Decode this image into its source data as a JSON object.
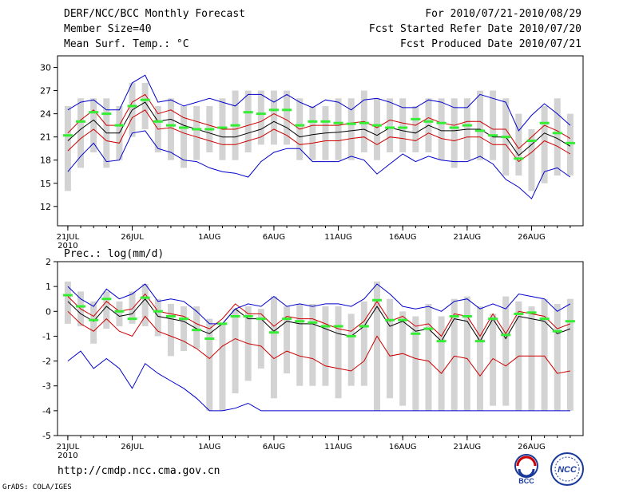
{
  "header": {
    "title": "DERF/NCC/BCC Monthly Forecast",
    "member_size": "Member Size=40",
    "variable": "Mean Surf. Temp.: °C",
    "for_period": "For 2010/07/21-2010/08/29",
    "fcst_started": "Fcst Started Refer Date 2010/07/20",
    "fcst_produced": "Fcst Produced Date 2010/07/21"
  },
  "footer": {
    "url": "http://cmdp.ncc.cma.gov.cn",
    "grads_credit": "GrADS: COLA/IGES",
    "logo_bcc": "BCC",
    "logo_ncc": "NCC"
  },
  "colors": {
    "box": "#d3d3d3",
    "green": "#33ee33",
    "blue": "#0000cc",
    "red": "#cc0000",
    "black": "#000000",
    "frame": "#000000"
  },
  "chart_data": [
    {
      "type": "box",
      "title": "Mean Surf. Temp.: °C",
      "xlabel": "",
      "ylabel": "",
      "x": [
        1,
        2,
        3,
        4,
        5,
        6,
        7,
        8,
        9,
        10,
        11,
        12,
        13,
        14,
        15,
        16,
        17,
        18,
        19,
        20,
        21,
        22,
        23,
        24,
        25,
        26,
        27,
        28,
        29,
        30,
        31,
        32,
        33,
        34,
        35,
        36,
        37,
        38,
        39,
        40
      ],
      "x_ticks": [
        {
          "x": 1,
          "label": "21JUL",
          "sublabel": "2010"
        },
        {
          "x": 6,
          "label": "26JUL"
        },
        {
          "x": 12,
          "label": "1AUG"
        },
        {
          "x": 17,
          "label": "6AUG"
        },
        {
          "x": 22,
          "label": "11AUG"
        },
        {
          "x": 27,
          "label": "16AUG"
        },
        {
          "x": 32,
          "label": "21AUG"
        },
        {
          "x": 37,
          "label": "26AUG"
        }
      ],
      "xlim": [
        0.2,
        41
      ],
      "ylim": [
        9.5,
        31.5
      ],
      "yticks": [
        12,
        15,
        18,
        21,
        24,
        27,
        30
      ],
      "box_low": [
        14,
        17,
        19,
        17,
        18,
        21,
        22,
        19,
        18,
        17,
        18,
        19,
        18,
        18,
        19,
        20,
        20,
        20,
        18,
        18,
        18,
        18,
        18,
        19,
        18,
        19,
        19,
        19,
        19,
        18,
        17,
        18,
        18,
        18,
        16,
        16,
        14,
        15,
        16,
        16
      ],
      "box_high": [
        25,
        26,
        26,
        26,
        25,
        28,
        28,
        25,
        26,
        25,
        25,
        25,
        26,
        27,
        27,
        27,
        27,
        27,
        26,
        25,
        25,
        26,
        26,
        27,
        26,
        26,
        26,
        25,
        26,
        26,
        26,
        26,
        27,
        27,
        26,
        24,
        22,
        25,
        26,
        24
      ],
      "green": [
        21.2,
        23,
        24.2,
        24,
        22.5,
        25,
        25.8,
        23,
        22.5,
        22.2,
        22,
        22,
        22.2,
        22.5,
        24.2,
        24,
        24.5,
        24.5,
        22.5,
        23,
        23,
        22.8,
        22.7,
        22.8,
        22.5,
        22.2,
        22.2,
        23.3,
        23,
        22.8,
        22.2,
        22.5,
        21.8,
        21.2,
        21,
        18.2,
        20.5,
        22.8,
        21.5,
        20.2
      ],
      "series": [
        {
          "name": "ensemble mean",
          "color": "#000000",
          "values": [
            20.5,
            22.0,
            23.2,
            21.5,
            21.5,
            24.5,
            25.5,
            23.0,
            23.3,
            22.5,
            22.0,
            21.5,
            21.0,
            21.0,
            21.5,
            22.0,
            23.0,
            22.2,
            21.0,
            21.3,
            21.5,
            21.6,
            21.8,
            22.0,
            21.2,
            22.2,
            21.8,
            21.5,
            22.5,
            21.8,
            21.8,
            22.0,
            22.0,
            21.0,
            21.0,
            18.6,
            20.0,
            21.5,
            20.8,
            19.8
          ]
        },
        {
          "name": "upper red",
          "color": "#cc0000",
          "values": [
            21.5,
            23.2,
            24.5,
            22.5,
            22.5,
            25.5,
            26.5,
            24.0,
            24.5,
            23.5,
            23.0,
            22.5,
            22.0,
            22.0,
            22.5,
            23.0,
            24.0,
            23.2,
            22.0,
            22.5,
            22.5,
            22.5,
            22.8,
            23.0,
            22.2,
            23.2,
            22.8,
            22.5,
            23.5,
            22.8,
            22.5,
            23.0,
            23.0,
            22.0,
            22.0,
            19.5,
            21.0,
            22.5,
            21.8,
            20.8
          ]
        },
        {
          "name": "lower red",
          "color": "#cc0000",
          "values": [
            19.2,
            20.8,
            22.0,
            20.5,
            20.2,
            23.5,
            24.5,
            22.0,
            22.2,
            21.5,
            21.0,
            20.5,
            20.0,
            20.0,
            20.5,
            21.0,
            22.0,
            21.2,
            20.0,
            20.2,
            20.5,
            20.5,
            20.8,
            21.0,
            20.0,
            21.0,
            20.8,
            20.5,
            21.5,
            20.8,
            20.5,
            21.0,
            21.0,
            20.0,
            20.0,
            17.8,
            19.0,
            20.5,
            19.8,
            18.8
          ]
        },
        {
          "name": "max",
          "color": "#0000cc",
          "values": [
            24.5,
            25.5,
            25.8,
            24.5,
            24.5,
            28.0,
            29.0,
            25.5,
            25.8,
            25.0,
            25.5,
            26.0,
            25.5,
            25.0,
            26.5,
            26.5,
            25.5,
            26.5,
            25.5,
            24.8,
            25.8,
            25.5,
            24.5,
            25.8,
            26.0,
            25.5,
            24.8,
            24.8,
            25.8,
            25.5,
            24.8,
            24.8,
            26.5,
            26.0,
            25.5,
            21.8,
            23.8,
            25.3,
            24.0,
            22.5
          ]
        },
        {
          "name": "min",
          "color": "#0000cc",
          "values": [
            16.5,
            18.5,
            20.2,
            17.8,
            18.0,
            21.5,
            21.8,
            19.5,
            19.0,
            18.0,
            17.8,
            17.0,
            16.5,
            16.3,
            15.8,
            17.8,
            19.0,
            19.5,
            19.5,
            17.8,
            17.8,
            17.8,
            18.5,
            18.0,
            16.2,
            17.5,
            18.8,
            17.8,
            18.5,
            18.0,
            17.8,
            17.8,
            18.5,
            17.5,
            15.5,
            14.5,
            13.0,
            16.5,
            17.0,
            15.8
          ]
        }
      ]
    },
    {
      "type": "box",
      "title": "Prec.: log(mm/d)",
      "xlabel": "",
      "ylabel": "",
      "x": [
        1,
        2,
        3,
        4,
        5,
        6,
        7,
        8,
        9,
        10,
        11,
        12,
        13,
        14,
        15,
        16,
        17,
        18,
        19,
        20,
        21,
        22,
        23,
        24,
        25,
        26,
        27,
        28,
        29,
        30,
        31,
        32,
        33,
        34,
        35,
        36,
        37,
        38,
        39,
        40
      ],
      "x_ticks": [
        {
          "x": 1,
          "label": "21JUL",
          "sublabel": "2010"
        },
        {
          "x": 6,
          "label": "26JUL"
        },
        {
          "x": 12,
          "label": "1AUG"
        },
        {
          "x": 17,
          "label": "6AUG"
        },
        {
          "x": 22,
          "label": "11AUG"
        },
        {
          "x": 27,
          "label": "16AUG"
        },
        {
          "x": 32,
          "label": "21AUG"
        },
        {
          "x": 37,
          "label": "26AUG"
        }
      ],
      "xlim": [
        0.2,
        41
      ],
      "ylim": [
        -5,
        2
      ],
      "yticks": [
        -5,
        -4,
        -3,
        -2,
        -1,
        0,
        1,
        2
      ],
      "box_low": [
        -0.5,
        -0.6,
        -1.3,
        -0.7,
        -0.6,
        -0.5,
        -0.6,
        -1.0,
        -1.8,
        -1.6,
        -1.5,
        -4.0,
        -4.0,
        -3.3,
        -2.8,
        -2.3,
        -3.5,
        -2.5,
        -3.0,
        -3.0,
        -3.0,
        -3.5,
        -3.0,
        -3.0,
        -4.0,
        -3.5,
        -3.8,
        -4.0,
        -4.0,
        -4.0,
        -4.0,
        -4.0,
        -4.0,
        -3.8,
        -3.8,
        -4.0,
        -4.0,
        -4.0,
        -4.0,
        -4.0
      ],
      "box_high": [
        1.2,
        0.8,
        0.4,
        0.8,
        0.4,
        0.8,
        1.1,
        0.5,
        0.3,
        0.2,
        0.2,
        -0.3,
        -0.5,
        0.1,
        0.2,
        0.1,
        0.6,
        0.2,
        0.3,
        0.3,
        0.2,
        0.2,
        -0.1,
        0.4,
        1.2,
        0.5,
        0.0,
        -0.2,
        0.3,
        -0.2,
        0.5,
        0.6,
        0.2,
        -0.1,
        0.6,
        0.4,
        0.2,
        0.5,
        0.3,
        0.5
      ],
      "green": [
        0.65,
        0.2,
        -0.35,
        0.5,
        0.0,
        -0.3,
        0.55,
        0.0,
        -0.2,
        -0.3,
        -0.75,
        -1.1,
        -0.5,
        -0.2,
        -0.2,
        -0.3,
        -0.85,
        -0.3,
        -0.4,
        -0.45,
        -0.6,
        -0.6,
        -1.0,
        -0.6,
        0.45,
        -0.35,
        -0.35,
        -0.9,
        -0.7,
        -1.2,
        -0.2,
        -0.2,
        -1.2,
        -0.3,
        -0.95,
        -0.1,
        -0.05,
        -0.3,
        -0.8,
        -0.4
      ],
      "series": [
        {
          "name": "ensemble mean",
          "color": "#000000",
          "values": [
            0.4,
            -0.1,
            -0.4,
            0.2,
            -0.2,
            -0.1,
            0.5,
            -0.2,
            -0.3,
            -0.4,
            -0.7,
            -0.9,
            -0.5,
            0.1,
            -0.3,
            -0.3,
            -0.8,
            -0.4,
            -0.5,
            -0.5,
            -0.7,
            -0.9,
            -1.0,
            -0.6,
            0.2,
            -0.6,
            -0.4,
            -0.8,
            -0.7,
            -1.2,
            -0.3,
            -0.4,
            -1.2,
            -0.3,
            -1.1,
            -0.2,
            -0.3,
            -0.4,
            -0.9,
            -0.7
          ]
        },
        {
          "name": "upper red",
          "color": "#cc0000",
          "values": [
            0.6,
            0.1,
            -0.2,
            0.4,
            0.0,
            0.1,
            0.7,
            0.0,
            -0.1,
            -0.2,
            -0.5,
            -0.7,
            -0.3,
            0.3,
            -0.1,
            -0.1,
            -0.6,
            -0.2,
            -0.3,
            -0.3,
            -0.5,
            -0.7,
            -0.8,
            -0.4,
            0.4,
            -0.4,
            -0.2,
            -0.6,
            -0.5,
            -1.0,
            -0.1,
            -0.2,
            -1.0,
            -0.1,
            -0.9,
            0.0,
            -0.1,
            -0.2,
            -0.7,
            -0.5
          ]
        },
        {
          "name": "lower red",
          "color": "#cc0000",
          "values": [
            0.0,
            -0.5,
            -0.8,
            -0.3,
            -0.8,
            -1.0,
            -0.2,
            -0.8,
            -1.0,
            -1.2,
            -1.5,
            -1.9,
            -1.4,
            -1.1,
            -1.3,
            -1.4,
            -1.9,
            -1.6,
            -1.8,
            -1.9,
            -2.2,
            -2.3,
            -2.4,
            -2.0,
            -1.0,
            -1.8,
            -1.7,
            -1.9,
            -2.0,
            -2.5,
            -1.8,
            -1.9,
            -2.6,
            -1.9,
            -2.2,
            -1.8,
            -1.8,
            -1.8,
            -2.5,
            -2.4
          ]
        },
        {
          "name": "max",
          "color": "#0000cc",
          "values": [
            1.0,
            0.5,
            0.2,
            0.9,
            0.5,
            0.7,
            1.1,
            0.4,
            0.5,
            0.4,
            0.0,
            -0.5,
            -0.5,
            0.1,
            0.3,
            0.2,
            0.6,
            0.2,
            0.3,
            0.2,
            0.3,
            0.3,
            0.2,
            0.5,
            1.1,
            0.7,
            0.2,
            0.1,
            0.2,
            0.0,
            0.4,
            0.5,
            0.1,
            0.3,
            0.1,
            0.7,
            0.6,
            0.5,
            0.0,
            0.3
          ]
        },
        {
          "name": "min",
          "color": "#0000cc",
          "values": [
            -2.0,
            -1.6,
            -2.3,
            -1.9,
            -2.3,
            -3.1,
            -2.1,
            -2.5,
            -2.8,
            -3.1,
            -3.5,
            -4.0,
            -4.0,
            -3.9,
            -3.7,
            -4.0,
            -4.0,
            -4.0,
            -4.0,
            -4.0,
            -4.0,
            -4.0,
            -4.0,
            -4.0,
            -4.0,
            -4.0,
            -4.0,
            -4.0,
            -4.0,
            -4.0,
            -4.0,
            -4.0,
            -4.0,
            -4.0,
            -4.0,
            -4.0,
            -4.0,
            -4.0,
            -4.0,
            -4.0
          ]
        }
      ]
    }
  ]
}
